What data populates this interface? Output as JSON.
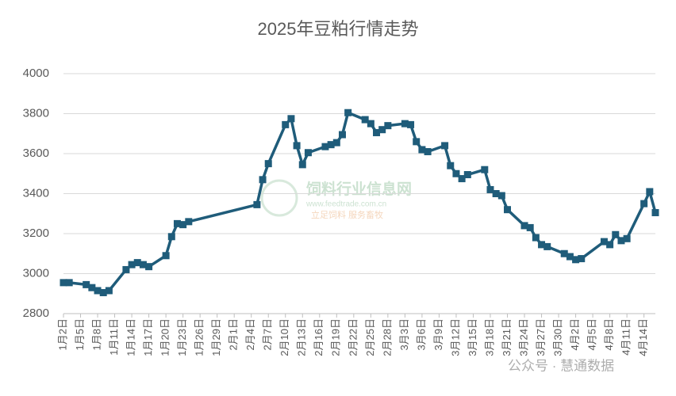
{
  "chart_data": {
    "type": "line",
    "title": "2025年豆粕行情走势",
    "x": [
      "1月2日",
      "1月3日",
      "1月6日",
      "1月7日",
      "1月8日",
      "1月9日",
      "1月10日",
      "1月13日",
      "1月14日",
      "1月15日",
      "1月16日",
      "1月17日",
      "1月20日",
      "1月21日",
      "1月22日",
      "1月23日",
      "1月24日",
      "2月5日",
      "2月6日",
      "2月7日",
      "2月10日",
      "2月11日",
      "2月12日",
      "2月13日",
      "2月14日",
      "2月17日",
      "2月18日",
      "2月19日",
      "2月20日",
      "2月21日",
      "2月24日",
      "2月25日",
      "2月26日",
      "2月27日",
      "2月28日",
      "3月3日",
      "3月4日",
      "3月5日",
      "3月6日",
      "3月7日",
      "3月10日",
      "3月11日",
      "3月12日",
      "3月13日",
      "3月14日",
      "3月17日",
      "3月18日",
      "3月19日",
      "3月20日",
      "3月21日",
      "3月24日",
      "3月25日",
      "3月26日",
      "3月27日",
      "3月28日",
      "3月31日",
      "4月1日",
      "4月2日",
      "4月3日",
      "4月7日",
      "4月8日",
      "4月9日",
      "4月10日",
      "4月11日",
      "4月14日",
      "4月15日",
      "4月16日"
    ],
    "series": [
      {
        "color": "#1f5c7a",
        "values": [
          2955,
          2955,
          2945,
          2930,
          2915,
          2905,
          2915,
          3020,
          3045,
          3055,
          3045,
          3035,
          3090,
          3185,
          3250,
          3245,
          3260,
          3345,
          3470,
          3550,
          3745,
          3775,
          3640,
          3545,
          3605,
          3635,
          3645,
          3655,
          3695,
          3805,
          3770,
          3750,
          3705,
          3720,
          3740,
          3750,
          3745,
          3660,
          3620,
          3610,
          3640,
          3540,
          3500,
          3475,
          3495,
          3520,
          3420,
          3400,
          3390,
          3320,
          3240,
          3230,
          3180,
          3145,
          3135,
          3100,
          3085,
          3070,
          3075,
          3160,
          3145,
          3195,
          3165,
          3175,
          3350,
          3410,
          3305
        ]
      }
    ],
    "xlim": [
      "1月2日",
      "4月16日"
    ],
    "xticks": [
      "1月2日",
      "1月5日",
      "1月8日",
      "1月11日",
      "1月14日",
      "1月17日",
      "1月20日",
      "1月23日",
      "1月26日",
      "1月29日",
      "2月1日",
      "2月4日",
      "2月7日",
      "2月10日",
      "2月13日",
      "2月16日",
      "2月19日",
      "2月22日",
      "2月25日",
      "2月28日",
      "3月3日",
      "3月6日",
      "3月9日",
      "3月12日",
      "3月15日",
      "3月18日",
      "3月21日",
      "3月24日",
      "3月27日",
      "3月30日",
      "4月2日",
      "4月5日",
      "4月8日",
      "4月11日",
      "4月14日"
    ],
    "ylim": [
      2800,
      4000
    ],
    "yticks": [
      2800,
      3000,
      3200,
      3400,
      3600,
      3800,
      4000
    ],
    "grid": true,
    "watermarks": [
      "饲料行业信息网",
      "www.feedtrade.com.cn",
      "立足饲料  服务畜牧",
      "公众号 · 慧通数据"
    ]
  }
}
